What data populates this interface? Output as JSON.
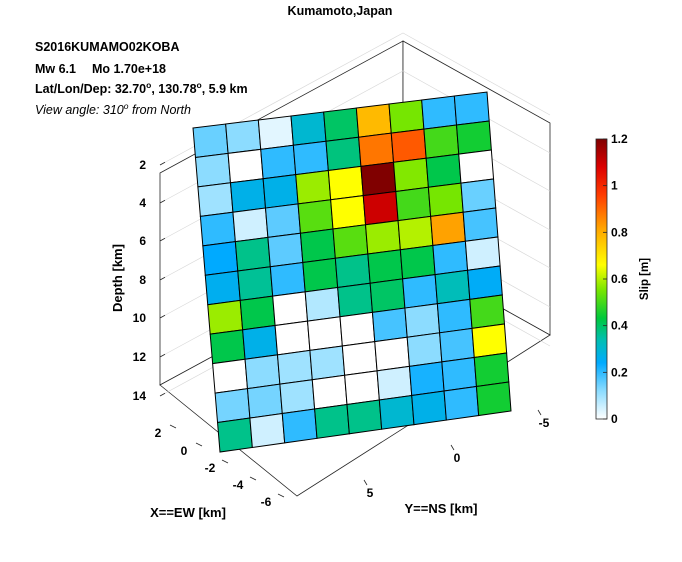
{
  "title": "Kumamoto,Japan",
  "info": {
    "event_id": "S2016KUMAMO02KOBA",
    "mw_label": "Mw 6.1",
    "mo_label": "Mo 1.70e+18",
    "loc_prefix": "Lat/Lon/Dep: 32.70",
    "loc_mid": ", 130.78",
    "loc_suffix": ", 5.9 km",
    "deg_symbol": "o",
    "view_prefix": "View angle: 310",
    "view_suffix": " from North"
  },
  "chart_data": {
    "type": "heatmap",
    "title": "Kumamoto,Japan",
    "zlabel": "Depth [km]",
    "xlabel": "X==EW [km]",
    "ylabel": "Y==NS [km]",
    "depth_ticks": [
      "2",
      "4",
      "6",
      "8",
      "10",
      "12",
      "14"
    ],
    "ew_ticks": [
      "2",
      "0",
      "-2",
      "-4",
      "-6"
    ],
    "ns_ticks": [
      "5",
      "0",
      "-5"
    ],
    "colorbar": {
      "label": "Slip [m]",
      "range": [
        0,
        1.2
      ],
      "ticks": [
        "0",
        "0.2",
        "0.4",
        "0.6",
        "0.8",
        "1",
        "1.2"
      ]
    },
    "grid": "on",
    "slip": [
      [
        0.15,
        0.12,
        0.03,
        0.3,
        0.4,
        0.78,
        0.55,
        0.2,
        0.2
      ],
      [
        0.12,
        0.0,
        0.2,
        0.2,
        0.38,
        0.88,
        0.92,
        0.5,
        0.45
      ],
      [
        0.1,
        0.27,
        0.27,
        0.58,
        0.66,
        1.2,
        0.56,
        0.42,
        0.0
      ],
      [
        0.2,
        0.05,
        0.16,
        0.52,
        0.66,
        1.1,
        0.5,
        0.55,
        0.15
      ],
      [
        0.24,
        0.37,
        0.16,
        0.42,
        0.52,
        0.58,
        0.6,
        0.82,
        0.18
      ],
      [
        0.26,
        0.36,
        0.2,
        0.42,
        0.37,
        0.42,
        0.42,
        0.2,
        0.05
      ],
      [
        0.58,
        0.42,
        0.0,
        0.08,
        0.37,
        0.4,
        0.2,
        0.33,
        0.25
      ],
      [
        0.42,
        0.27,
        0.0,
        0.0,
        0.0,
        0.18,
        0.12,
        0.2,
        0.5
      ],
      [
        0.0,
        0.12,
        0.1,
        0.1,
        0.0,
        0.0,
        0.12,
        0.18,
        0.66
      ],
      [
        0.14,
        0.14,
        0.1,
        0.0,
        0.0,
        0.05,
        0.22,
        0.2,
        0.45
      ],
      [
        0.37,
        0.05,
        0.2,
        0.37,
        0.37,
        0.3,
        0.27,
        0.2,
        0.45
      ]
    ]
  }
}
